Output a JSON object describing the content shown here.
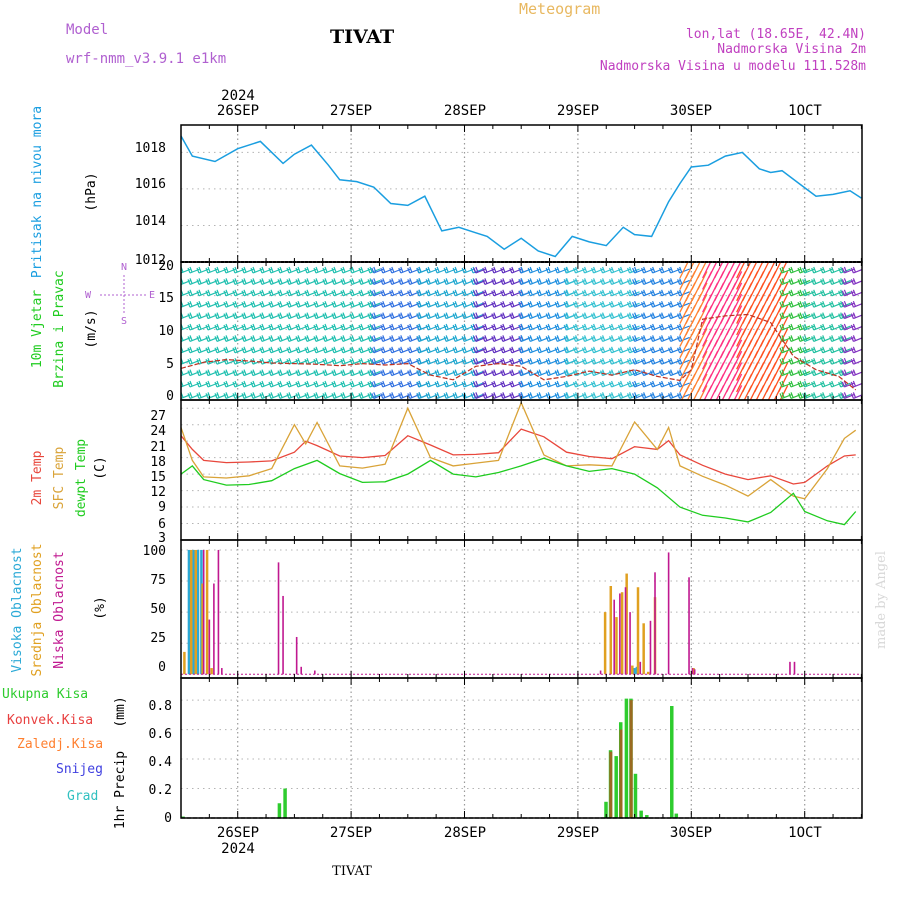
{
  "header": {
    "model_label": "Model",
    "model_name": "wrf-nmm_v3.9.1 e1km",
    "station": "TIVAT",
    "meteogram": "Meteogram",
    "lonlat": "lon,lat (18.65E, 42.4N)",
    "altitude": "Nadmorska Visina 2m",
    "model_altitude": "Nadmorska Visina u modelu 111.528m"
  },
  "footer": {
    "station": "TIVAT",
    "credit": "made by Angel"
  },
  "colors": {
    "pressure": "#1a9ee0",
    "temp2m": "#e8473c",
    "sfc": "#d9a338",
    "dew": "#1fcc1f",
    "high": "#2aa9d6",
    "mid": "#e0a020",
    "low": "#c01890",
    "total_precip": "#2ecc2e",
    "conv": "#e84040",
    "frozen": "#ff8030",
    "snow": "#4040e0",
    "graupel": "#30c0c0",
    "model": "#b060d0",
    "meta": "#c040c0"
  },
  "chart_data": [
    {
      "type": "line",
      "panel": "pressure",
      "ylabel": "Pritisak na nivou mora",
      "unit": "(hPa)",
      "ylim": [
        1012,
        1019.5
      ],
      "yticks": [
        "1012",
        "1014",
        "1016",
        "1018"
      ],
      "x_day_ticks": [
        "26SEP",
        "27SEP",
        "28SEP",
        "29SEP",
        "30SEP",
        "1OCT"
      ],
      "x_year": "2024",
      "series": [
        {
          "x": [
            0,
            0.1,
            0.3,
            0.5,
            0.7,
            0.9,
            1.0,
            1.15,
            1.3,
            1.4,
            1.55,
            1.7,
            1.85,
            2.0,
            2.15,
            2.3,
            2.45,
            2.6,
            2.7,
            2.85,
            3.0,
            3.15,
            3.3,
            3.45,
            3.6,
            3.75,
            3.9,
            4.0,
            4.15,
            4.3,
            4.4,
            4.5,
            4.65,
            4.8,
            4.95,
            5.1,
            5.2,
            5.3,
            5.45,
            5.6,
            5.75,
            5.9,
            6.0
          ],
          "values": [
            1018.9,
            1017.8,
            1017.5,
            1018.2,
            1018.6,
            1017.4,
            1017.9,
            1018.4,
            1017.3,
            1016.5,
            1016.4,
            1016.1,
            1015.2,
            1015.1,
            1015.6,
            1013.7,
            1013.9,
            1013.6,
            1013.4,
            1012.7,
            1013.3,
            1012.6,
            1012.3,
            1013.4,
            1013.1,
            1012.9,
            1013.9,
            1013.5,
            1013.4,
            1015.3,
            1016.3,
            1017.2,
            1017.3,
            1017.8,
            1018.0,
            1017.1,
            1016.9,
            1017.0,
            1016.3,
            1015.6,
            1015.7,
            1015.9,
            1015.5
          ]
        }
      ]
    },
    {
      "type": "line",
      "panel": "wind",
      "ylabel": [
        "10m Vjetar",
        "Brzina i Pravac"
      ],
      "unit": "(m/s)",
      "ylim": [
        -0.5,
        20
      ],
      "yticks": [
        "0",
        "5",
        "10",
        "15",
        "20"
      ],
      "compass": [
        "N",
        "E",
        "S",
        "W"
      ],
      "series": [
        {
          "name": "brzina",
          "x": [
            0,
            0.2,
            0.4,
            0.6,
            0.8,
            1.0,
            1.2,
            1.4,
            1.6,
            1.8,
            2.0,
            2.2,
            2.4,
            2.6,
            2.8,
            3.0,
            3.2,
            3.4,
            3.6,
            3.8,
            4.0,
            4.2,
            4.4,
            4.5,
            4.6,
            4.8,
            5.0,
            5.2,
            5.4,
            5.6,
            5.8,
            5.95
          ],
          "values": [
            4.2,
            5.1,
            5.5,
            5.3,
            5.0,
            4.9,
            4.8,
            4.6,
            4.9,
            4.7,
            4.9,
            3.2,
            2.5,
            4.5,
            4.9,
            4.5,
            2.5,
            3.0,
            3.8,
            3.2,
            4.0,
            3.0,
            2.4,
            4.0,
            11.5,
            12.0,
            12.2,
            11.0,
            6.0,
            4.0,
            3.0,
            1.0
          ]
        }
      ],
      "barb_bands": [
        {
          "x0": 0.0,
          "x1": 1.7,
          "color": "#20c0b0"
        },
        {
          "x0": 1.7,
          "x1": 2.1,
          "color": "#3070e0"
        },
        {
          "x0": 2.1,
          "x1": 2.6,
          "color": "#20a8d0"
        },
        {
          "x0": 2.6,
          "x1": 3.0,
          "color": "#6030c0"
        },
        {
          "x0": 3.0,
          "x1": 3.4,
          "color": "#2090e0"
        },
        {
          "x0": 3.4,
          "x1": 4.0,
          "color": "#30c0d0"
        },
        {
          "x0": 4.0,
          "x1": 4.4,
          "color": "#2080e0"
        },
        {
          "x0": 4.4,
          "x1": 4.6,
          "color": "#ff8030"
        },
        {
          "x0": 4.6,
          "x1": 4.9,
          "color": "#ff3080"
        },
        {
          "x0": 4.9,
          "x1": 5.3,
          "color": "#ff5020"
        },
        {
          "x0": 5.3,
          "x1": 5.5,
          "color": "#30c040"
        },
        {
          "x0": 5.5,
          "x1": 5.85,
          "color": "#20c0a0"
        },
        {
          "x0": 5.85,
          "x1": 6.0,
          "color": "#8030c0"
        }
      ]
    },
    {
      "type": "line",
      "panel": "temperature",
      "ylabel": [
        "2m Temp",
        "SFC Temp",
        "dewpt Temp"
      ],
      "unit": "(C)",
      "ylim": [
        3,
        28.5
      ],
      "yticks": [
        "3",
        "6",
        "9",
        "12",
        "15",
        "18",
        "21",
        "24",
        "27"
      ],
      "series": [
        {
          "name": "2m Temp",
          "x": [
            0,
            0.1,
            0.2,
            0.4,
            0.6,
            0.8,
            1.0,
            1.1,
            1.2,
            1.4,
            1.6,
            1.8,
            2.0,
            2.2,
            2.4,
            2.6,
            2.8,
            3.0,
            3.2,
            3.4,
            3.6,
            3.8,
            4.0,
            4.2,
            4.3,
            4.4,
            4.6,
            4.8,
            5.0,
            5.2,
            5.4,
            5.5,
            5.7,
            5.85,
            5.95
          ],
          "values": [
            22.0,
            19.5,
            17.5,
            17.1,
            17.2,
            17.4,
            19.0,
            21.0,
            20.2,
            18.3,
            18.0,
            18.4,
            22.0,
            20.3,
            18.5,
            18.6,
            18.9,
            23.2,
            21.8,
            19.0,
            18.2,
            17.8,
            20.0,
            19.5,
            21.1,
            18.5,
            16.6,
            15.0,
            14.0,
            14.7,
            13.2,
            13.5,
            16.5,
            18.3,
            18.5
          ]
        },
        {
          "name": "SFC Temp",
          "x": [
            0,
            0.1,
            0.2,
            0.4,
            0.6,
            0.8,
            1.0,
            1.1,
            1.2,
            1.4,
            1.6,
            1.8,
            2.0,
            2.2,
            2.4,
            2.6,
            2.8,
            3.0,
            3.2,
            3.4,
            3.6,
            3.8,
            4.0,
            4.2,
            4.3,
            4.4,
            4.6,
            4.8,
            5.0,
            5.2,
            5.4,
            5.5,
            5.7,
            5.85,
            5.95
          ],
          "values": [
            23.5,
            17.5,
            14.5,
            14.3,
            14.7,
            16.0,
            24.0,
            20.5,
            24.4,
            16.5,
            16.1,
            16.8,
            27.0,
            18.0,
            16.5,
            17.0,
            17.5,
            28.0,
            18.5,
            16.5,
            16.7,
            16.5,
            24.5,
            19.5,
            23.5,
            16.5,
            14.6,
            13.0,
            11.0,
            14.0,
            11.0,
            10.5,
            16.0,
            21.5,
            23.0
          ]
        },
        {
          "name": "dewpt Temp",
          "x": [
            0,
            0.1,
            0.2,
            0.4,
            0.6,
            0.8,
            1.0,
            1.2,
            1.4,
            1.6,
            1.8,
            2.0,
            2.2,
            2.4,
            2.6,
            2.8,
            3.0,
            3.2,
            3.4,
            3.6,
            3.8,
            4.0,
            4.2,
            4.4,
            4.6,
            4.8,
            5.0,
            5.2,
            5.4,
            5.5,
            5.7,
            5.85,
            5.95
          ],
          "values": [
            15.0,
            16.5,
            14.0,
            13.0,
            13.1,
            13.8,
            16.0,
            17.5,
            15.1,
            13.5,
            13.6,
            15.0,
            17.5,
            15.0,
            14.5,
            15.3,
            16.5,
            17.9,
            16.5,
            15.5,
            16.0,
            15.0,
            12.5,
            9.0,
            7.5,
            7.0,
            6.3,
            8.0,
            11.5,
            8.2,
            6.5,
            5.8,
            8.2
          ]
        }
      ]
    },
    {
      "type": "bar",
      "panel": "cloud",
      "ylabel": [
        "Visoka Oblacnost",
        "Srednja Oblacnost",
        "Niska Oblacnost"
      ],
      "unit": "(%)",
      "ylim": [
        -3,
        108
      ],
      "yticks": [
        "0",
        "25",
        "50",
        "75",
        "100"
      ],
      "series": [
        {
          "name": "Visoka Oblacnost",
          "x": [
            0.07,
            0.11,
            0.15,
            0.18,
            4.0,
            4.02
          ],
          "values": [
            100,
            100,
            100,
            100,
            5,
            6
          ]
        },
        {
          "name": "Srednja Oblacnost",
          "x": [
            0.03,
            0.09,
            0.13,
            0.19,
            0.23,
            0.27,
            3.74,
            3.79,
            3.84,
            3.89,
            3.93,
            3.98,
            4.03,
            4.08,
            4.12,
            4.18,
            4.52
          ],
          "values": [
            18,
            100,
            100,
            73,
            100,
            5,
            50,
            71,
            46,
            66,
            81,
            7,
            70,
            41,
            2,
            62,
            5
          ]
        },
        {
          "name": "Niska Oblacnost",
          "x": [
            0.2,
            0.25,
            0.29,
            0.33,
            0.36,
            0.86,
            0.9,
            1.02,
            1.06,
            1.18,
            3.7,
            3.82,
            3.87,
            3.92,
            3.96,
            4.05,
            4.14,
            4.18,
            4.3,
            4.48,
            4.51,
            4.53,
            5.37,
            5.41
          ],
          "values": [
            100,
            44,
            73,
            100,
            5,
            90,
            63,
            30,
            6,
            3,
            3,
            60,
            65,
            70,
            50,
            10,
            43,
            82,
            98,
            78,
            5,
            4,
            10,
            10
          ]
        }
      ]
    },
    {
      "type": "bar",
      "panel": "precip",
      "ylabel": "1hr Precip",
      "unit": "(mm)",
      "ylim": [
        0,
        0.95
      ],
      "yticks": [
        "0",
        "0.2",
        "0.4",
        "0.6",
        "0.8"
      ],
      "legend": [
        "Ukupna Kisa",
        "Konvek.Kisa",
        "Zaledj.Kisa",
        "Snijeg",
        "Grad"
      ],
      "series": [
        {
          "name": "Ukupna Kisa",
          "x": [
            0.02,
            0.87,
            0.92,
            3.75,
            3.79,
            3.84,
            3.88,
            3.93,
            3.97,
            4.01,
            4.06,
            4.11,
            4.33,
            4.37
          ],
          "values": [
            0.01,
            0.1,
            0.2,
            0.11,
            0.46,
            0.42,
            0.65,
            0.81,
            0.81,
            0.3,
            0.05,
            0.02,
            0.76,
            0.03
          ]
        },
        {
          "name": "Konvek.Kisa",
          "x": [
            3.79,
            3.88,
            3.97
          ],
          "values": [
            0.45,
            0.6,
            0.8
          ]
        }
      ]
    }
  ]
}
